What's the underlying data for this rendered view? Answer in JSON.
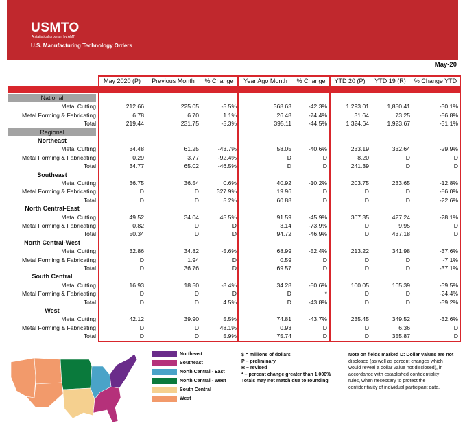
{
  "header": {
    "logo": "USMTO",
    "tagline": "A statistical program by AMT",
    "title": "U.S. Manufacturing Technology Orders",
    "period": "May-20"
  },
  "table": {
    "columns": [
      "May 2020 (P)",
      "Previous Month",
      "% Change",
      "Year Ago Month",
      "% Change",
      "YTD 20 (P)",
      "YTD 19 (R)",
      "% Change YTD"
    ],
    "national": {
      "heading": "National",
      "rows": [
        {
          "label": "Metal Cutting",
          "cells": [
            "212.66",
            "225.05",
            "-5.5%",
            "368.63",
            "-42.3%",
            "1,293.01",
            "1,850.41",
            "-30.1%"
          ]
        },
        {
          "label": "Metal Forming & Fabricating",
          "cells": [
            "6.78",
            "6.70",
            "1.1%",
            "26.48",
            "-74.4%",
            "31.64",
            "73.25",
            "-56.8%"
          ]
        },
        {
          "label": "Total",
          "cells": [
            "219.44",
            "231.75",
            "-5.3%",
            "395.11",
            "-44.5%",
            "1,324.64",
            "1,923.67",
            "-31.1%"
          ]
        }
      ]
    },
    "regional": {
      "heading": "Regional",
      "regions": [
        {
          "name": "Northeast",
          "rows": [
            {
              "label": "Metal Cutting",
              "cells": [
                "34.48",
                "61.25",
                "-43.7%",
                "58.05",
                "-40.6%",
                "233.19",
                "332.64",
                "-29.9%"
              ]
            },
            {
              "label": "Metal Forming & Fabricating",
              "cells": [
                "0.29",
                "3.77",
                "-92.4%",
                "D",
                "D",
                "8.20",
                "D",
                "D"
              ]
            },
            {
              "label": "Total",
              "cells": [
                "34.77",
                "65.02",
                "-46.5%",
                "D",
                "D",
                "241.39",
                "D",
                "D"
              ]
            }
          ]
        },
        {
          "name": "Southeast",
          "rows": [
            {
              "label": "Metal Cutting",
              "cells": [
                "36.75",
                "36.54",
                "0.6%",
                "40.92",
                "-10.2%",
                "203.75",
                "233.65",
                "-12.8%"
              ]
            },
            {
              "label": "Metal Forming & Fabricating",
              "cells": [
                "D",
                "D",
                "327.9%",
                "19.96",
                "D",
                "D",
                "D",
                "-86.0%"
              ]
            },
            {
              "label": "Total",
              "cells": [
                "D",
                "D",
                "5.2%",
                "60.88",
                "D",
                "D",
                "D",
                "-22.6%"
              ]
            }
          ]
        },
        {
          "name": "North Central-East",
          "rows": [
            {
              "label": "Metal Cutting",
              "cells": [
                "49.52",
                "34.04",
                "45.5%",
                "91.59",
                "-45.9%",
                "307.35",
                "427.24",
                "-28.1%"
              ]
            },
            {
              "label": "Metal Forming & Fabricating",
              "cells": [
                "0.82",
                "D",
                "D",
                "3.14",
                "-73.9%",
                "D",
                "9.95",
                "D"
              ]
            },
            {
              "label": "Total",
              "cells": [
                "50.34",
                "D",
                "D",
                "94.72",
                "-46.9%",
                "D",
                "437.18",
                "D"
              ]
            }
          ]
        },
        {
          "name": "North Central-West",
          "rows": [
            {
              "label": "Metal Cutting",
              "cells": [
                "32.86",
                "34.82",
                "-5.6%",
                "68.99",
                "-52.4%",
                "213.22",
                "341.98",
                "-37.6%"
              ]
            },
            {
              "label": "Metal Forming & Fabricating",
              "cells": [
                "D",
                "1.94",
                "D",
                "0.59",
                "D",
                "D",
                "D",
                "-7.1%"
              ]
            },
            {
              "label": "Total",
              "cells": [
                "D",
                "36.76",
                "D",
                "69.57",
                "D",
                "D",
                "D",
                "-37.1%"
              ]
            }
          ]
        },
        {
          "name": "South Central",
          "rows": [
            {
              "label": "Metal Cutting",
              "cells": [
                "16.93",
                "18.50",
                "-8.4%",
                "34.28",
                "-50.6%",
                "100.05",
                "165.39",
                "-39.5%"
              ]
            },
            {
              "label": "Metal Forming & Fabricating",
              "cells": [
                "D",
                "D",
                "D",
                "D",
                "*",
                "D",
                "D",
                "-24.4%"
              ]
            },
            {
              "label": "Total",
              "cells": [
                "D",
                "D",
                "4.5%",
                "D",
                "-43.8%",
                "D",
                "D",
                "-39.2%"
              ]
            }
          ]
        },
        {
          "name": "West",
          "rows": [
            {
              "label": "Metal Cutting",
              "cells": [
                "42.12",
                "39.90",
                "5.5%",
                "74.81",
                "-43.7%",
                "235.45",
                "349.52",
                "-32.6%"
              ]
            },
            {
              "label": "Metal Forming & Fabricating",
              "cells": [
                "D",
                "D",
                "48.1%",
                "0.93",
                "D",
                "D",
                "6.36",
                "D"
              ]
            },
            {
              "label": "Total",
              "cells": [
                "D",
                "D",
                "5.9%",
                "75.74",
                "D",
                "D",
                "355.87",
                "D"
              ]
            }
          ]
        }
      ]
    }
  },
  "legend": [
    {
      "label": "Northeast",
      "color": "#6a2c8a"
    },
    {
      "label": "Southeast",
      "color": "#b5317a"
    },
    {
      "label": "North Central - East",
      "color": "#4aa3c8"
    },
    {
      "label": "North Central - West",
      "color": "#0a7a3c"
    },
    {
      "label": "South Central",
      "color": "#f5d08f"
    },
    {
      "label": "West",
      "color": "#f29a6b"
    }
  ],
  "notes": [
    "$ = millions of dollars",
    "P – preliminary",
    "R – revised",
    "* – percent change greater than 1,000%",
    "Totals may not match due to rounding"
  ],
  "d_note": [
    "Note on fields marked D: Dollar values are not",
    "disclosed (as well as percent changes which",
    "would reveal a dollar value not disclosed), in",
    "accordance with established confidentiality",
    "rules, when necessary to protect the",
    "confidentiality of individual participant data."
  ]
}
